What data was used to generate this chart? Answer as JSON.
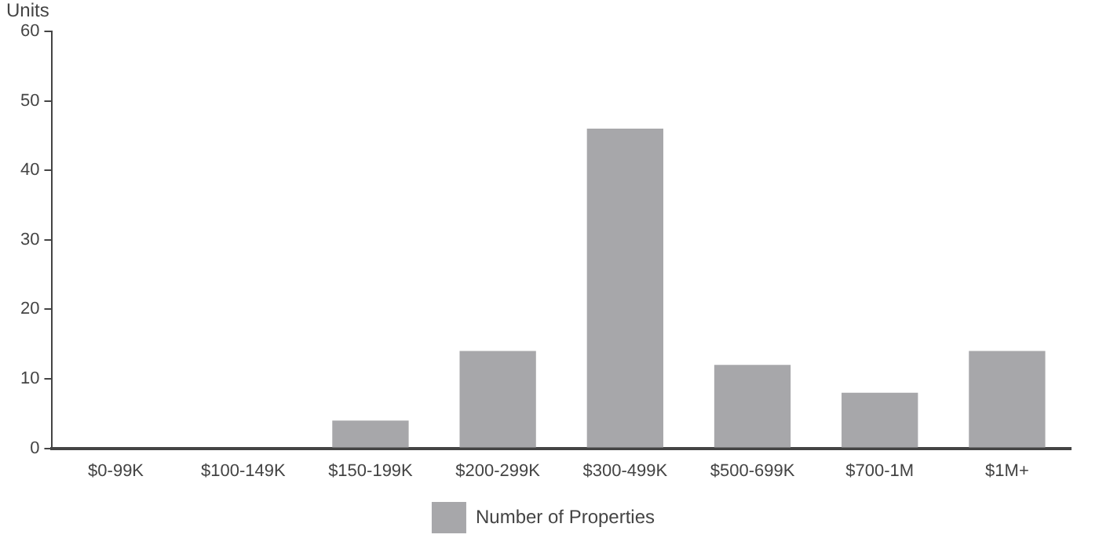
{
  "chart_data": {
    "type": "bar",
    "ylabel": "Units",
    "categories": [
      "$0-99K",
      "$100-149K",
      "$150-199K",
      "$200-299K",
      "$300-499K",
      "$500-699K",
      "$700-1M",
      "$1M+"
    ],
    "series": [
      {
        "name": "Number of Properties",
        "color": "#a7a7aa",
        "values": [
          0,
          0,
          4,
          14,
          46,
          12,
          8,
          14
        ]
      }
    ],
    "ylim": [
      0,
      60
    ],
    "yticks": [
      0,
      10,
      20,
      30,
      40,
      50,
      60
    ],
    "grid": false,
    "legend": "bottom"
  }
}
